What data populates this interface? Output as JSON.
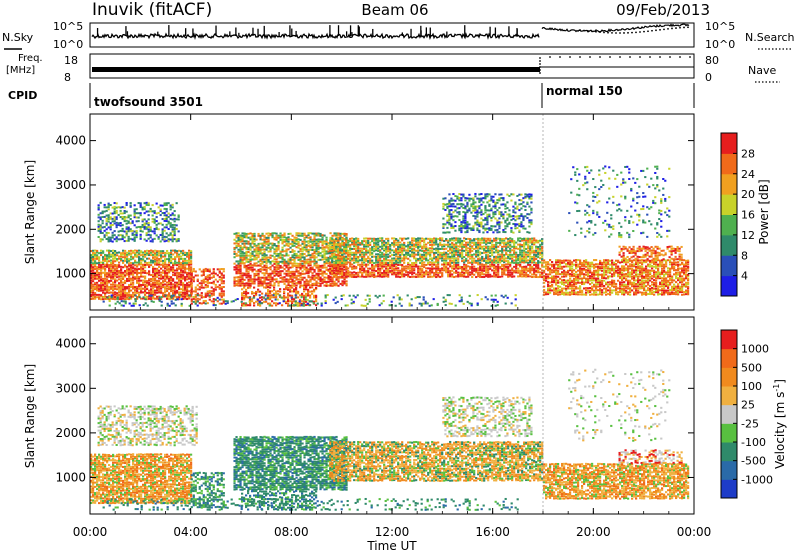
{
  "header": {
    "site": "Inuvik (fitACF)",
    "beam": "Beam 06",
    "date": "09/Feb/2013"
  },
  "noise_panel": {
    "left_label": "N.Sky",
    "right_label": "N.Search",
    "left_ticks": [
      "10^5",
      "10^0"
    ],
    "right_ticks": [
      "10^5",
      "10^0"
    ]
  },
  "freq_panel": {
    "label_line1": "Freq.",
    "label_line2": "[MHz]",
    "right_label": "Nave",
    "left_ticks": [
      "18",
      "8"
    ],
    "right_ticks": [
      "80",
      "0"
    ]
  },
  "cpid_panel": {
    "label": "CPID",
    "segments": [
      {
        "start_hour": 0,
        "name": "twofsound 3501"
      },
      {
        "start_hour": 18,
        "name": "normal 150"
      }
    ]
  },
  "x_axis": {
    "label": "Time UT",
    "range_hours": [
      0,
      24
    ],
    "ticks": [
      "00:00",
      "04:00",
      "08:00",
      "12:00",
      "16:00",
      "20:00",
      "00:00"
    ]
  },
  "chart_data": [
    {
      "type": "heatmap",
      "name": "power",
      "ylabel": "Slant Range [km]",
      "ylim": [
        180,
        4600
      ],
      "yticks": [
        1000,
        2000,
        3000,
        4000
      ],
      "colorbar": {
        "label": "Power [dB]",
        "ticks": [
          "4",
          "8",
          "12",
          "16",
          "20",
          "24",
          "28"
        ],
        "colors": [
          "#1e1ee6",
          "#2a4fb8",
          "#2f8a6a",
          "#4fb04f",
          "#c8d22a",
          "#f0a020",
          "#f06a1a",
          "#e61e1e"
        ]
      }
    },
    {
      "type": "heatmap",
      "name": "velocity",
      "ylabel": "Slant Range [km]",
      "ylim": [
        180,
        4600
      ],
      "yticks": [
        1000,
        2000,
        3000,
        4000
      ],
      "colorbar": {
        "label": "Velocity [m s^-1]",
        "ticks": [
          "1000",
          "500",
          "100",
          "25",
          "-25",
          "-100",
          "-500",
          "-1000"
        ],
        "colors": [
          "#1e3cc8",
          "#2a6aa8",
          "#2f8a6a",
          "#58c040",
          "#c8c8c8",
          "#f0b040",
          "#f08a1e",
          "#f06a1a",
          "#e61e1e"
        ]
      }
    }
  ]
}
